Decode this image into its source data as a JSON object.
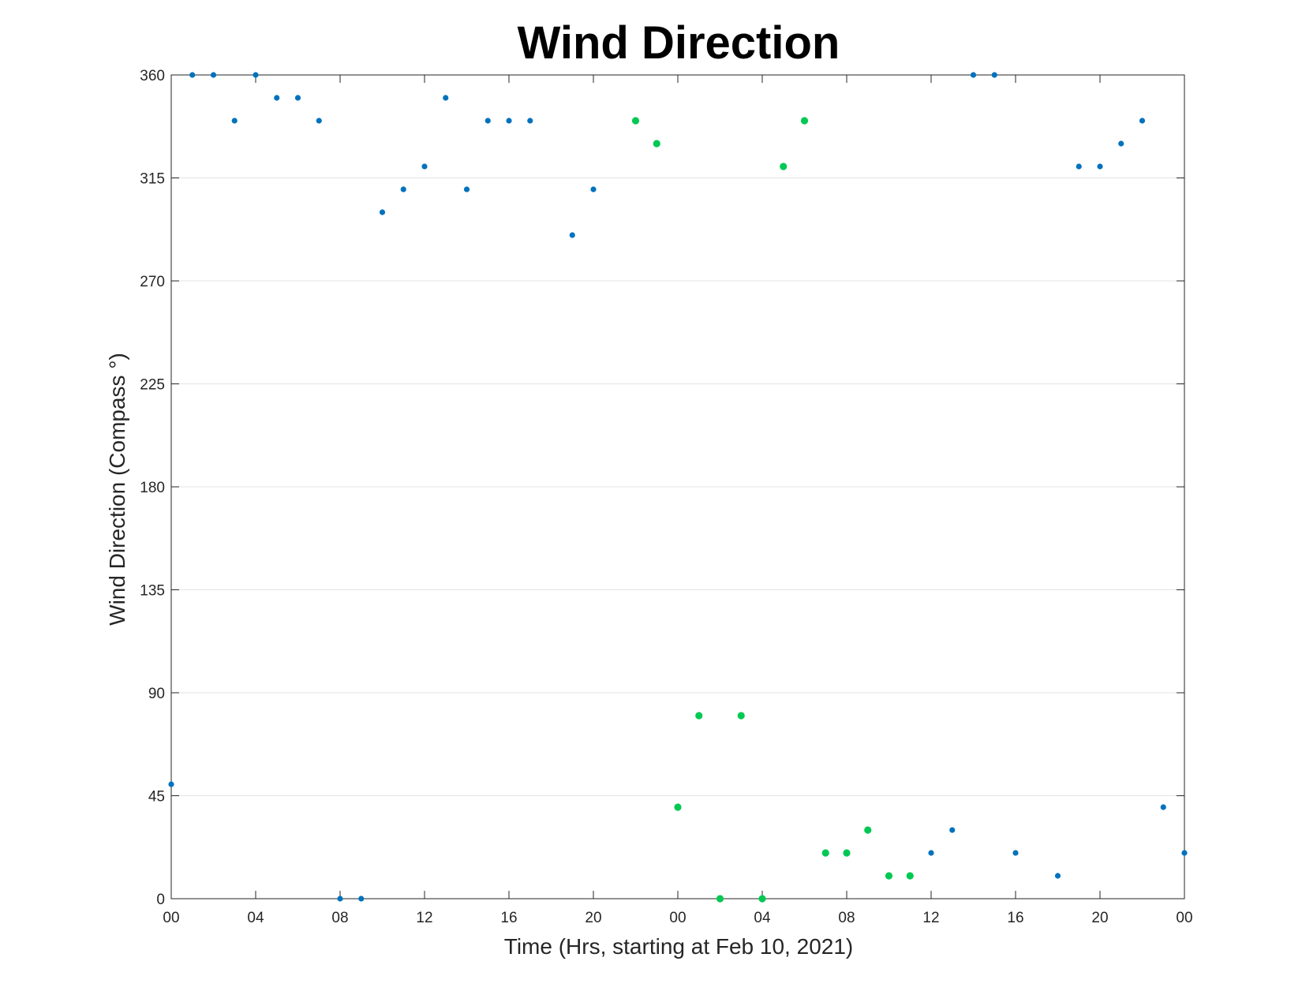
{
  "chart_data": {
    "type": "scatter",
    "title": "Wind Direction",
    "xlabel": "Time (Hrs, starting at Feb 10, 2021)",
    "ylabel": "Wind Direction (Compass °)",
    "x_unit": "hours",
    "xlim": [
      0,
      48
    ],
    "ylim": [
      0,
      360
    ],
    "x_tick_values": [
      0,
      4,
      8,
      12,
      16,
      20,
      24,
      28,
      32,
      36,
      40,
      44,
      48
    ],
    "x_tick_labels": [
      "00",
      "04",
      "08",
      "12",
      "16",
      "20",
      "00",
      "04",
      "08",
      "12",
      "16",
      "20",
      "00"
    ],
    "y_ticks": [
      0,
      45,
      90,
      135,
      180,
      225,
      270,
      315,
      360
    ],
    "grid": "horizontal",
    "colors": {
      "blue": "#0072BD",
      "green": "#00C853",
      "grid": "#e3e3e3",
      "axis": "#262626"
    },
    "series": [
      {
        "color": "#0072BD",
        "points": [
          [
            0,
            50
          ],
          [
            1,
            360
          ],
          [
            2,
            360
          ],
          [
            3,
            340
          ],
          [
            4,
            360
          ],
          [
            5,
            350
          ],
          [
            6,
            350
          ],
          [
            7,
            340
          ],
          [
            8,
            0
          ],
          [
            9,
            0
          ],
          [
            10,
            300
          ],
          [
            11,
            310
          ],
          [
            12,
            320
          ],
          [
            13,
            350
          ],
          [
            14,
            310
          ],
          [
            15,
            340
          ],
          [
            16,
            340
          ],
          [
            17,
            340
          ],
          [
            19,
            290
          ],
          [
            20,
            310
          ],
          [
            36,
            20
          ],
          [
            37,
            30
          ],
          [
            38,
            360
          ],
          [
            39,
            360
          ],
          [
            40,
            20
          ],
          [
            42,
            10
          ],
          [
            43,
            320
          ],
          [
            44,
            320
          ],
          [
            45,
            330
          ],
          [
            46,
            340
          ],
          [
            47,
            40
          ],
          [
            48,
            20
          ]
        ]
      },
      {
        "color": "#00C853",
        "points": [
          [
            22,
            340
          ],
          [
            23,
            330
          ],
          [
            24,
            40
          ],
          [
            25,
            80
          ],
          [
            26,
            0
          ],
          [
            27,
            80
          ],
          [
            28,
            0
          ],
          [
            29,
            320
          ],
          [
            30,
            340
          ],
          [
            31,
            20
          ],
          [
            32,
            20
          ],
          [
            33,
            30
          ],
          [
            34,
            10
          ],
          [
            35,
            10
          ]
        ]
      }
    ]
  }
}
